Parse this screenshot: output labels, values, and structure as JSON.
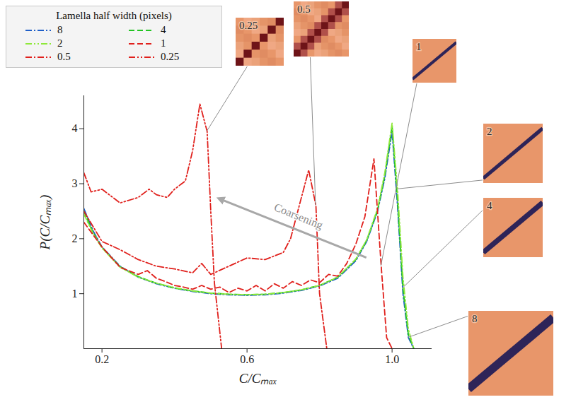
{
  "chart_data": {
    "type": "line",
    "xlabel": "C/Cₘₐₓ",
    "ylabel": "P(C/Cₘₐₓ)",
    "xlim": [
      0.15,
      1.11
    ],
    "ylim": [
      0,
      4.6
    ],
    "xticks": [
      0.2,
      0.6,
      {
        "value": 1,
        "label": "1.0"
      }
    ],
    "yticks": [
      1,
      2,
      3,
      4
    ],
    "legend": "top-left",
    "legend_title": "Lamella half width (pixels)",
    "annotations": [
      {
        "text": "Coarsening"
      }
    ],
    "series": [
      {
        "name": "8",
        "color": "#1f5fc8",
        "line_style": "dashdot",
        "x": [
          0.15,
          0.175,
          0.2,
          0.25,
          0.3,
          0.35,
          0.4,
          0.45,
          0.5,
          0.55,
          0.6,
          0.65,
          0.7,
          0.75,
          0.8,
          0.85,
          0.9,
          0.93,
          0.96,
          0.98,
          1.0,
          1.015,
          1.03,
          1.045,
          1.06
        ],
        "values": [
          2.55,
          2.15,
          1.85,
          1.5,
          1.3,
          1.18,
          1.1,
          1.04,
          1.0,
          0.98,
          0.97,
          0.98,
          1.01,
          1.06,
          1.14,
          1.28,
          1.6,
          1.95,
          2.5,
          3.1,
          3.95,
          2.6,
          1.0,
          0.2,
          0
        ]
      },
      {
        "name": "4",
        "color": "#22c422",
        "line_style": "dashed",
        "x": [
          0.15,
          0.175,
          0.2,
          0.25,
          0.3,
          0.35,
          0.4,
          0.45,
          0.5,
          0.55,
          0.6,
          0.65,
          0.7,
          0.75,
          0.8,
          0.85,
          0.9,
          0.93,
          0.96,
          0.98,
          1.0,
          1.015,
          1.03,
          1.045,
          1.06
        ],
        "values": [
          2.5,
          2.12,
          1.84,
          1.49,
          1.31,
          1.19,
          1.1,
          1.05,
          1.01,
          0.99,
          0.98,
          0.99,
          1.02,
          1.07,
          1.15,
          1.3,
          1.62,
          1.97,
          2.52,
          3.15,
          4.05,
          2.7,
          1.1,
          0.25,
          0
        ]
      },
      {
        "name": "2",
        "color": "#8ee83a",
        "line_style": "dashdotdot",
        "x": [
          0.15,
          0.175,
          0.2,
          0.25,
          0.3,
          0.35,
          0.4,
          0.45,
          0.5,
          0.55,
          0.6,
          0.65,
          0.7,
          0.75,
          0.8,
          0.85,
          0.9,
          0.93,
          0.96,
          0.98,
          1.0,
          1.015,
          1.03,
          1.045,
          1.06
        ],
        "values": [
          2.45,
          2.1,
          1.83,
          1.48,
          1.3,
          1.19,
          1.11,
          1.05,
          1.01,
          0.99,
          0.98,
          0.99,
          1.02,
          1.07,
          1.15,
          1.3,
          1.63,
          1.98,
          2.55,
          3.2,
          4.1,
          2.9,
          1.3,
          0.35,
          0
        ]
      },
      {
        "name": "1",
        "color": "#e0201c",
        "line_style": "dashed",
        "x": [
          0.15,
          0.2,
          0.25,
          0.3,
          0.325,
          0.35,
          0.375,
          0.4,
          0.425,
          0.45,
          0.475,
          0.5,
          0.525,
          0.55,
          0.575,
          0.6,
          0.625,
          0.65,
          0.675,
          0.7,
          0.725,
          0.75,
          0.775,
          0.8,
          0.825,
          0.85,
          0.875,
          0.9,
          0.925,
          0.95,
          0.97,
          0.985,
          1.0
        ],
        "values": [
          2.3,
          1.85,
          1.48,
          1.35,
          1.42,
          1.28,
          1.22,
          1.15,
          1.12,
          1.08,
          1.15,
          1.08,
          1.12,
          1.02,
          1.1,
          1.05,
          1.15,
          1.05,
          1.18,
          1.1,
          1.22,
          1.15,
          1.25,
          1.2,
          1.35,
          1.32,
          1.55,
          1.9,
          2.4,
          3.45,
          1.5,
          0.2,
          0
        ]
      },
      {
        "name": "0.5",
        "color": "#e0201c",
        "line_style": "dashdot",
        "x": [
          0.15,
          0.2,
          0.25,
          0.3,
          0.35,
          0.4,
          0.45,
          0.475,
          0.5,
          0.55,
          0.6,
          0.65,
          0.7,
          0.72,
          0.74,
          0.77,
          0.79,
          0.8,
          0.82
        ],
        "values": [
          2.5,
          1.95,
          1.8,
          1.62,
          1.5,
          1.45,
          1.38,
          1.55,
          1.35,
          1.5,
          1.65,
          1.62,
          1.75,
          2.0,
          2.5,
          3.25,
          2.6,
          1.0,
          0
        ]
      },
      {
        "name": "0.25",
        "color": "#e0201c",
        "line_style": "dashdotdot",
        "x": [
          0.15,
          0.17,
          0.2,
          0.25,
          0.3,
          0.33,
          0.35,
          0.38,
          0.4,
          0.43,
          0.45,
          0.47,
          0.49,
          0.5,
          0.51,
          0.53
        ],
        "values": [
          3.2,
          2.85,
          2.9,
          2.65,
          2.75,
          2.9,
          2.8,
          2.75,
          2.9,
          3.05,
          3.6,
          4.45,
          3.95,
          2.5,
          1.2,
          0
        ]
      }
    ]
  }
}
